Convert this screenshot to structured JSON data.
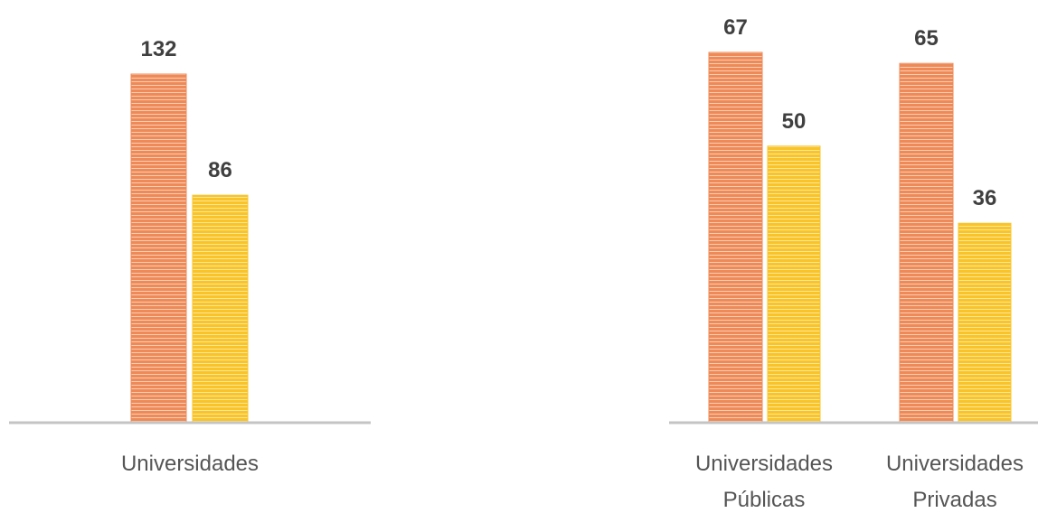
{
  "palette": {
    "orange": "#ee8a57",
    "orange_stripe": "#f9cdb5",
    "yellow": "#f8c42a",
    "yellow_stripe": "#fde69b",
    "axis": "#c4c4c4",
    "label": "#555555",
    "value_label": "#404040"
  },
  "chart_data": [
    {
      "type": "bar",
      "categories": [
        "Universidades"
      ],
      "series": [
        {
          "values": [
            132
          ]
        },
        {
          "values": [
            86
          ]
        }
      ],
      "ylim": [
        0,
        140
      ],
      "grid": false,
      "legend": "none"
    },
    {
      "type": "bar",
      "categories": [
        [
          "Universidades",
          "Públicas"
        ],
        [
          "Universidades",
          "Privadas"
        ]
      ],
      "series": [
        {
          "values": [
            67,
            65
          ]
        },
        {
          "values": [
            50,
            36
          ]
        }
      ],
      "ylim": [
        0,
        70
      ],
      "grid": false,
      "legend": "none"
    }
  ]
}
